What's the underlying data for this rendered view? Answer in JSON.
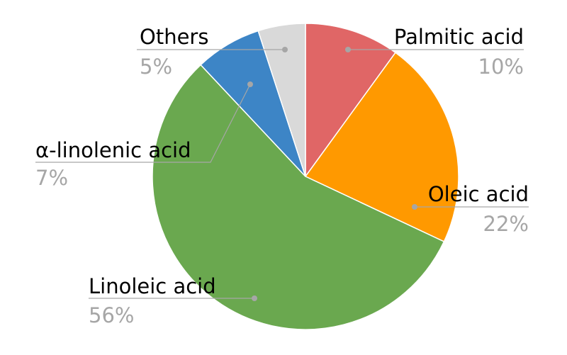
{
  "chart_data": {
    "type": "pie",
    "slices": [
      {
        "label": "Palmitic acid",
        "value": 10,
        "value_label": "10%",
        "color": "#e06666"
      },
      {
        "label": "Oleic acid",
        "value": 22,
        "value_label": "22%",
        "color": "#ff9900"
      },
      {
        "label": "Linoleic acid",
        "value": 56,
        "value_label": "56%",
        "color": "#6aa84f"
      },
      {
        "label": "α-linolenic acid",
        "value": 7,
        "value_label": "7%",
        "color": "#3d85c6"
      },
      {
        "label": "Others",
        "value": 5,
        "value_label": "5%",
        "color": "#d9d9d9"
      }
    ],
    "start_angle_deg": 0,
    "direction": "clockwise",
    "legend": "none"
  }
}
